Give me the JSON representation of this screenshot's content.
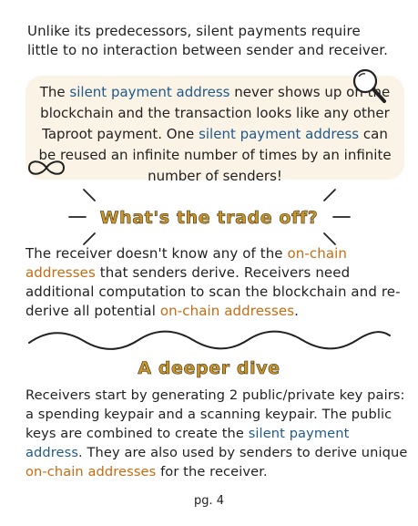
{
  "intro": {
    "line1": "Unlike its predecessors, silent payments require",
    "line2": "little to no interaction between sender and receiver."
  },
  "callout": {
    "p1": "The ",
    "term1": "silent payment address",
    "p2": " never shows up on the blockchain and the transaction looks like any other Taproot payment. One ",
    "term2": "silent payment address",
    "p3": " can be reused an infinite number of times by an infinite number of senders!"
  },
  "tradeoff": {
    "heading": "What's the trade off?",
    "p1": "The receiver doesn't know any of the ",
    "term1": "on-chain addresses",
    "p2": " that senders derive. Receivers need additional computation to scan the blockchain and re-derive all potential ",
    "term2": "on-chain addresses",
    "p3": "."
  },
  "deeper": {
    "heading": "A deeper dive",
    "p1": "Receivers start by generating 2 public/private key pairs: a spending keypair and a scanning keypair. The public keys are combined to create the ",
    "term1": "silent payment address",
    "p2": ". They are also used by senders to derive unique ",
    "term2": "on-chain addresses",
    "p3": " for the receiver."
  },
  "footer": {
    "page": "pg. 4"
  },
  "colors": {
    "blue_term": "#1f5a8a",
    "orange_term": "#c76b12",
    "callout_bg": "#fbf4e6",
    "heading": "#c9962a"
  },
  "icons": [
    "magnifier-icon",
    "infinity-icon",
    "burst-lines-icon",
    "wavy-divider-icon"
  ]
}
